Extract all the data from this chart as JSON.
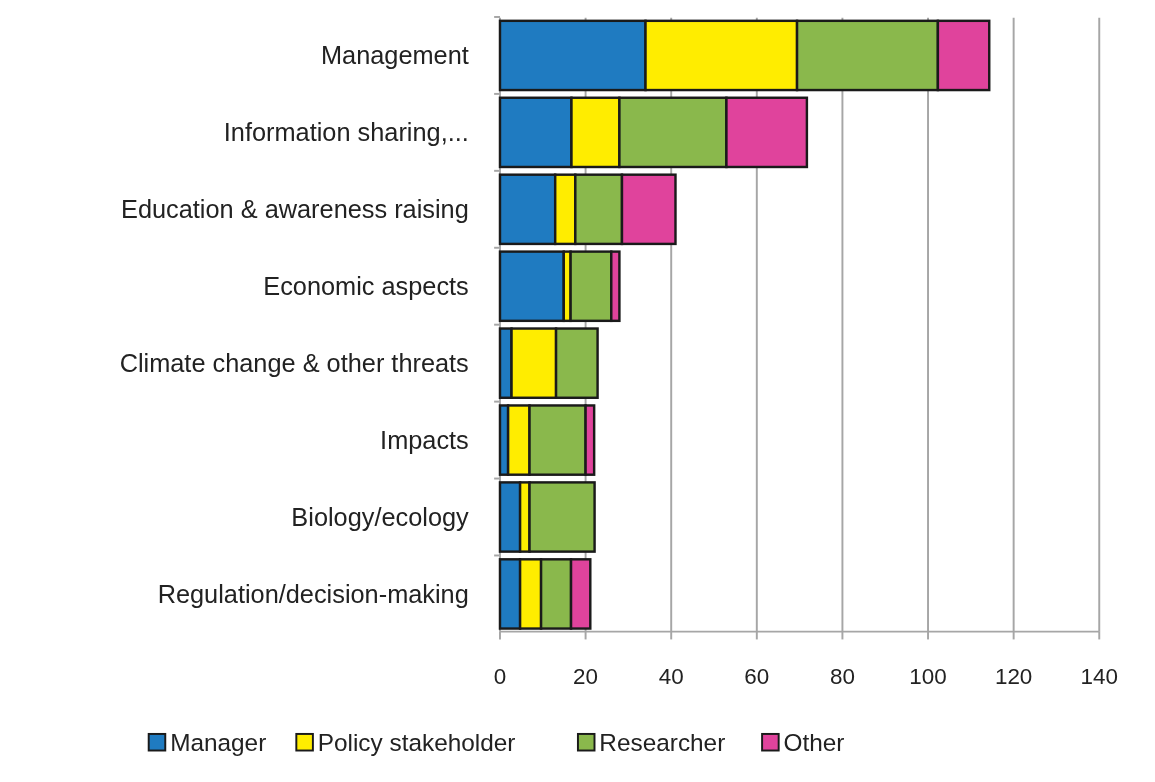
{
  "chart_data": {
    "type": "bar",
    "orientation": "horizontal",
    "stacked": true,
    "categories": [
      "Management",
      "Information sharing,...",
      "Education & awareness raising",
      "Economic aspects",
      "Climate change & other threats",
      "Impacts",
      "Biology/ecology",
      "Regulation/decision-making"
    ],
    "series": [
      {
        "name": "Manager",
        "color": "#1f7bc1",
        "values": [
          34,
          16.7,
          12.9,
          14.9,
          2.7,
          1.9,
          4.7,
          4.7
        ]
      },
      {
        "name": "Policy stakeholder",
        "color": "#ffed00",
        "values": [
          35.4,
          11.2,
          4.7,
          1.6,
          10.4,
          5,
          2.2,
          4.9
        ]
      },
      {
        "name": "Researcher",
        "color": "#8ab84c",
        "values": [
          32.9,
          25,
          10.9,
          9.5,
          9.7,
          13.1,
          15.2,
          7
        ]
      },
      {
        "name": "Other",
        "color": "#e0439c",
        "values": [
          12,
          18.8,
          12.5,
          1.9,
          0,
          2,
          0,
          4.5
        ]
      }
    ],
    "xlim": [
      0,
      140
    ],
    "xticks": [
      0,
      20,
      40,
      60,
      80,
      100,
      120,
      140
    ],
    "grid": "x",
    "legend": "bottom"
  }
}
